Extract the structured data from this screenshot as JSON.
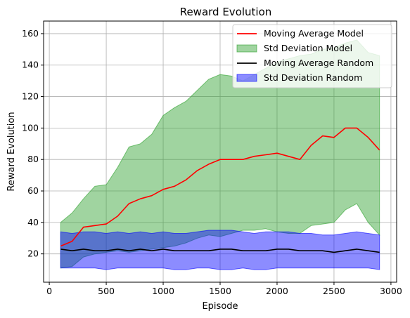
{
  "chart_data": {
    "type": "line",
    "title": "Reward Evolution",
    "xlabel": "Episode",
    "ylabel": "Reward Evolution",
    "xlim": [
      -50,
      3050
    ],
    "ylim": [
      2,
      168
    ],
    "xticks": [
      0,
      500,
      1000,
      1500,
      2000,
      2500,
      3000
    ],
    "yticks": [
      20,
      40,
      60,
      80,
      100,
      120,
      140,
      160
    ],
    "grid": true,
    "legend_position": "top-right",
    "x": [
      100,
      200,
      300,
      400,
      500,
      600,
      700,
      800,
      900,
      1000,
      1100,
      1200,
      1300,
      1400,
      1500,
      1600,
      1700,
      1800,
      1900,
      2000,
      2100,
      2200,
      2300,
      2400,
      2500,
      2600,
      2700,
      2800,
      2900
    ],
    "series": [
      {
        "name": "Moving Average Model",
        "kind": "line",
        "color": "#ff0000",
        "values": [
          25,
          28,
          37,
          38,
          39,
          44,
          52,
          55,
          57,
          61,
          63,
          67,
          73,
          77,
          80,
          80,
          80,
          82,
          83,
          84,
          82,
          80,
          89,
          95,
          94,
          100,
          100,
          94,
          86
        ]
      },
      {
        "name": "Std Deviation Model",
        "kind": "band",
        "color": "#2ca02c",
        "upper": [
          40,
          46,
          55,
          63,
          64,
          75,
          88,
          90,
          96,
          108,
          113,
          117,
          124,
          131,
          134,
          133,
          130,
          134,
          138,
          142,
          144,
          146,
          147,
          150,
          151,
          154,
          156,
          148,
          146
        ],
        "lower": [
          11,
          12,
          18,
          20,
          21,
          22,
          21,
          22,
          23,
          24,
          25,
          27,
          30,
          32,
          31,
          33,
          35,
          35,
          36,
          34,
          33,
          33,
          38,
          39,
          40,
          48,
          52,
          40,
          32
        ]
      },
      {
        "name": "Moving Average Random",
        "kind": "line",
        "color": "#000000",
        "values": [
          23,
          22,
          23,
          22,
          22,
          23,
          22,
          23,
          22,
          23,
          22,
          22,
          22,
          22,
          23,
          23,
          22,
          22,
          22,
          23,
          23,
          22,
          22,
          22,
          21,
          22,
          23,
          22,
          21
        ]
      },
      {
        "name": "Std Deviation Random",
        "kind": "band",
        "color": "#0000ff",
        "upper": [
          34,
          33,
          34,
          34,
          33,
          34,
          33,
          34,
          33,
          34,
          33,
          33,
          34,
          35,
          35,
          35,
          34,
          33,
          34,
          34,
          34,
          33,
          33,
          32,
          32,
          33,
          34,
          33,
          32
        ],
        "lower": [
          11,
          11,
          11,
          11,
          10,
          11,
          11,
          11,
          11,
          11,
          10,
          10,
          11,
          11,
          10,
          10,
          11,
          10,
          10,
          11,
          11,
          11,
          11,
          11,
          11,
          11,
          11,
          11,
          10
        ]
      }
    ]
  }
}
